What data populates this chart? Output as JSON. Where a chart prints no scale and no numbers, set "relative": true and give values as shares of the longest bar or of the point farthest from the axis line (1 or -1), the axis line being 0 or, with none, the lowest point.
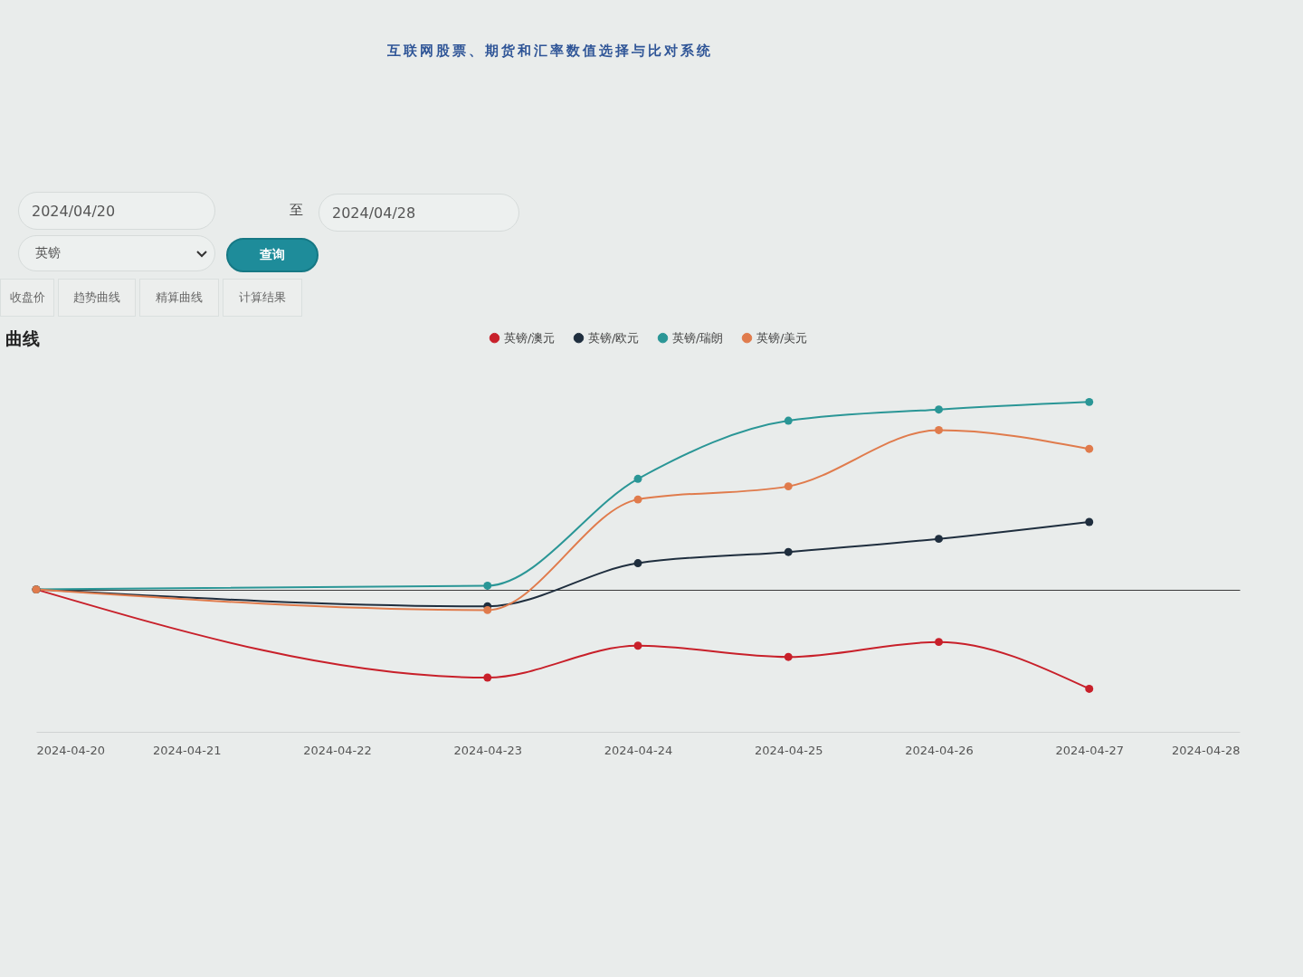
{
  "chart_data": {
    "type": "line",
    "title": "曲线",
    "annotations": [
      "互联网股票、期货和汇率数值选择与比对系统",
      "2024/04/20",
      "至",
      "2024/04/28",
      "英镑",
      "查询",
      "收盘价",
      "趋势曲线",
      "精算曲线",
      "计算结果"
    ],
    "x": [
      "2024-04-20",
      "2024-04-23",
      "2024-04-24",
      "2024-04-25",
      "2024-04-26",
      "2024-04-27"
    ],
    "series": [
      {
        "name": "英镑/澳元",
        "color": "#c8202a",
        "values": [
          0,
          -0.47,
          -0.3,
          -0.36,
          -0.28,
          -0.53
        ]
      },
      {
        "name": "英镑/欧元",
        "color": "#1f2e3e",
        "values": [
          0,
          -0.09,
          0.14,
          0.2,
          0.27,
          0.36
        ]
      },
      {
        "name": "英镑/瑞朗",
        "color": "#2a9696",
        "values": [
          0,
          0.02,
          0.59,
          0.9,
          0.96,
          1
        ]
      },
      {
        "name": "英镑/美元",
        "color": "#e07b4c",
        "values": [
          0,
          -0.11,
          0.48,
          0.55,
          0.85,
          0.75
        ]
      }
    ],
    "relative": true,
    "xlim": [
      "2024-04-20",
      "2024-04-28"
    ],
    "xticks": [
      "2024-04-20",
      "2024-04-21",
      "2024-04-22",
      "2024-04-23",
      "2024-04-24",
      "2024-04-25",
      "2024-04-26",
      "2024-04-27",
      "2024-04-28"
    ],
    "legend": "top",
    "marker": "circle",
    "line_style": "solid"
  }
}
